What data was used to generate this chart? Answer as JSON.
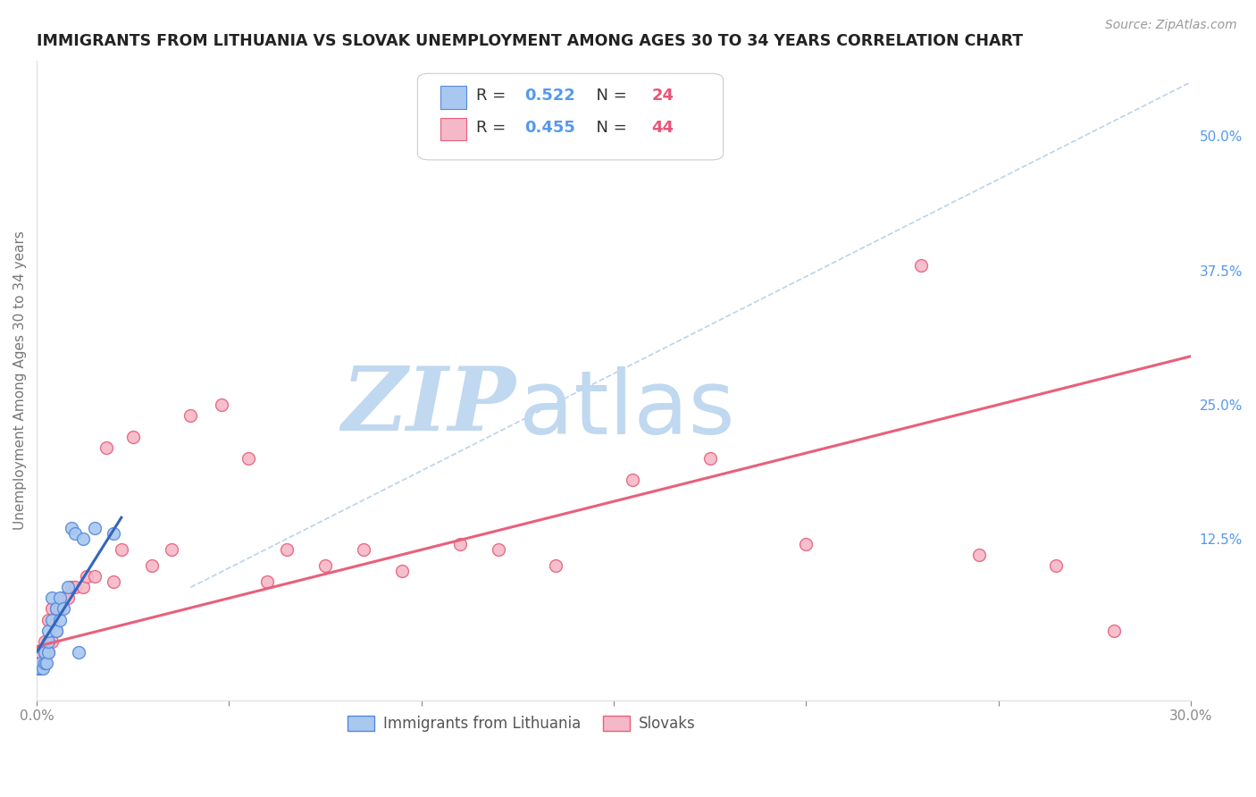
{
  "title": "IMMIGRANTS FROM LITHUANIA VS SLOVAK UNEMPLOYMENT AMONG AGES 30 TO 34 YEARS CORRELATION CHART",
  "source": "Source: ZipAtlas.com",
  "ylabel": "Unemployment Among Ages 30 to 34 years",
  "legend_label1": "Immigrants from Lithuania",
  "legend_label2": "Slovaks",
  "legend_R1": "R = 0.522",
  "legend_N1": "N = 24",
  "legend_R2": "R = 0.455",
  "legend_N2": "N = 44",
  "color_blue_fill": "#a8c8f0",
  "color_blue_edge": "#5588dd",
  "color_pink_fill": "#f5b8c8",
  "color_pink_edge": "#e8607a",
  "color_blue_line": "#3366bb",
  "color_pink_line": "#e8607a",
  "color_dashed": "#aac8e8",
  "background": "#ffffff",
  "grid_color": "#cccccc",
  "title_color": "#222222",
  "right_label_color": "#5599ee",
  "tick_color": "#888888",
  "xlim": [
    0.0,
    0.3
  ],
  "ylim": [
    -0.025,
    0.57
  ],
  "blue_points_x": [
    0.0005,
    0.001,
    0.001,
    0.0015,
    0.002,
    0.002,
    0.0025,
    0.003,
    0.003,
    0.003,
    0.004,
    0.004,
    0.005,
    0.005,
    0.006,
    0.006,
    0.007,
    0.008,
    0.009,
    0.01,
    0.011,
    0.012,
    0.015,
    0.02
  ],
  "blue_points_y": [
    0.005,
    0.005,
    0.01,
    0.005,
    0.01,
    0.02,
    0.01,
    0.02,
    0.03,
    0.04,
    0.05,
    0.07,
    0.04,
    0.06,
    0.05,
    0.07,
    0.06,
    0.08,
    0.135,
    0.13,
    0.02,
    0.125,
    0.135,
    0.13
  ],
  "pink_points_x": [
    0.0005,
    0.001,
    0.001,
    0.0015,
    0.002,
    0.002,
    0.003,
    0.003,
    0.004,
    0.004,
    0.005,
    0.005,
    0.006,
    0.007,
    0.008,
    0.009,
    0.01,
    0.012,
    0.013,
    0.015,
    0.018,
    0.02,
    0.022,
    0.025,
    0.03,
    0.035,
    0.04,
    0.048,
    0.055,
    0.06,
    0.065,
    0.075,
    0.085,
    0.095,
    0.11,
    0.12,
    0.135,
    0.155,
    0.175,
    0.2,
    0.23,
    0.245,
    0.265,
    0.28
  ],
  "pink_points_y": [
    0.005,
    0.01,
    0.02,
    0.01,
    0.02,
    0.03,
    0.02,
    0.05,
    0.03,
    0.06,
    0.04,
    0.06,
    0.06,
    0.07,
    0.07,
    0.08,
    0.08,
    0.08,
    0.09,
    0.09,
    0.21,
    0.085,
    0.115,
    0.22,
    0.1,
    0.115,
    0.24,
    0.25,
    0.2,
    0.085,
    0.115,
    0.1,
    0.115,
    0.095,
    0.12,
    0.115,
    0.1,
    0.18,
    0.2,
    0.12,
    0.38,
    0.11,
    0.1,
    0.04
  ],
  "blue_line_x": [
    0.0,
    0.022
  ],
  "blue_line_y": [
    0.02,
    0.145
  ],
  "pink_line_x": [
    0.0,
    0.3
  ],
  "pink_line_y": [
    0.025,
    0.295
  ],
  "dashed_line_x": [
    0.04,
    0.3
  ],
  "dashed_line_y": [
    0.08,
    0.55
  ],
  "watermark_zip": "ZIP",
  "watermark_atlas": "atlas",
  "watermark_color_zip": "#c0d8f0",
  "watermark_color_atlas": "#c0d8f0",
  "marker_size": 100
}
